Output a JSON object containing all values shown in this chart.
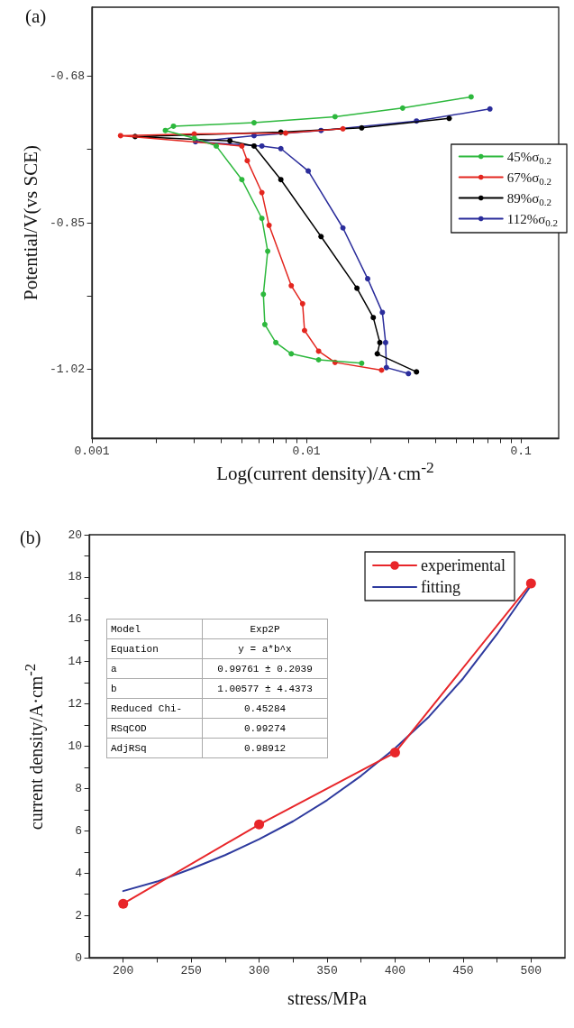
{
  "chart_data": [
    {
      "type": "line",
      "xlabel": "Log(current density)/A·cm$^{-2}$",
      "ylabel": "Potential/V(vs SCE)",
      "log": "x",
      "xlim": [
        0.001,
        0.15
      ],
      "xticks": [
        0.001,
        {
          "value": 0.002,
          "label": null
        },
        {
          "value": 0.003,
          "label": null
        },
        {
          "value": 0.004,
          "label": null
        },
        {
          "value": 0.005,
          "label": null
        },
        {
          "value": 0.006,
          "label": null
        },
        {
          "value": 0.007,
          "label": null
        },
        {
          "value": 0.008,
          "label": null
        },
        {
          "value": 0.009,
          "label": null
        },
        0.01,
        {
          "value": 0.02,
          "label": null
        },
        {
          "value": 0.03,
          "label": null
        },
        {
          "value": 0.04,
          "label": null
        },
        {
          "value": 0.05,
          "label": null
        },
        {
          "value": 0.06,
          "label": null
        },
        {
          "value": 0.07,
          "label": null
        },
        {
          "value": 0.08,
          "label": null
        },
        {
          "value": 0.09,
          "label": null
        },
        0.1
      ],
      "ylim": [
        -1.1,
        -0.6
      ],
      "yticks": [
        -1.02,
        {
          "value": -0.935,
          "label": null
        },
        -0.85,
        {
          "value": -0.765,
          "label": null
        },
        -0.68
      ],
      "grid": false,
      "legend": "right",
      "marker": "circle",
      "line_style": "solid",
      "annotations": [
        "(a)"
      ],
      "series": [
        {
          "name": "45%σ$_{0.2}$",
          "color": "#2db83d",
          "x": [
            0.0181,
            0.0114,
            0.0085,
            0.0072,
            0.0064,
            0.0063,
            0.0066,
            0.0062,
            0.005,
            0.0038,
            0.003,
            0.0022,
            0.0024,
            0.0057,
            0.0136,
            0.0281,
            0.0586
          ],
          "values": [
            -1.013,
            -1.009,
            -1.002,
            -0.989,
            -0.968,
            -0.933,
            -0.883,
            -0.845,
            -0.8,
            -0.761,
            -0.752,
            -0.743,
            -0.738,
            -0.734,
            -0.727,
            -0.717,
            -0.704
          ]
        },
        {
          "name": "67%σ$_{0.2}$",
          "color": "#e3261f",
          "x": [
            0.0224,
            0.0136,
            0.0114,
            0.0098,
            0.0096,
            0.0085,
            0.0067,
            0.0062,
            0.0053,
            0.005,
            0.00136,
            0.003,
            0.008,
            0.0148
          ],
          "values": [
            -1.021,
            -1.012,
            -0.999,
            -0.975,
            -0.944,
            -0.923,
            -0.853,
            -0.815,
            -0.778,
            -0.761,
            -0.749,
            -0.747,
            -0.746,
            -0.741
          ]
        },
        {
          "name": "89%σ$_{0.2}$",
          "color": "#000000",
          "x": [
            0.0326,
            0.0214,
            0.022,
            0.0205,
            0.0172,
            0.0117,
            0.0076,
            0.0057,
            0.0044,
            0.00159,
            0.0076,
            0.0181,
            0.0463
          ],
          "values": [
            -1.023,
            -1.002,
            -0.989,
            -0.96,
            -0.926,
            -0.866,
            -0.8,
            -0.761,
            -0.755,
            -0.75,
            -0.745,
            -0.74,
            -0.729
          ]
        },
        {
          "name": "112%σ$_{0.2}$",
          "color": "#2b2d9b",
          "x": [
            0.0299,
            0.0236,
            0.0234,
            0.0226,
            0.0193,
            0.0148,
            0.0102,
            0.0076,
            0.0062,
            0.00304,
            0.0057,
            0.0117,
            0.0326,
            0.0717
          ],
          "values": [
            -1.025,
            -1.018,
            -0.989,
            -0.954,
            -0.915,
            -0.856,
            -0.79,
            -0.764,
            -0.761,
            -0.756,
            -0.749,
            -0.743,
            -0.732,
            -0.718
          ]
        }
      ]
    },
    {
      "type": "line",
      "xlabel": "stress/MPa",
      "ylabel": "current density/A·cm$^{-2}$",
      "xlim": [
        175,
        525
      ],
      "xticks": [
        200,
        {
          "value": 225,
          "label": null
        },
        250,
        {
          "value": 275,
          "label": null
        },
        300,
        {
          "value": 325,
          "label": null
        },
        350,
        {
          "value": 375,
          "label": null
        },
        400,
        {
          "value": 425,
          "label": null
        },
        450,
        {
          "value": 475,
          "label": null
        },
        500
      ],
      "ylim": [
        0,
        20
      ],
      "yticks": [
        0,
        {
          "value": 1,
          "label": null
        },
        2,
        {
          "value": 3,
          "label": null
        },
        4,
        {
          "value": 5,
          "label": null
        },
        6,
        {
          "value": 7,
          "label": null
        },
        8,
        {
          "value": 9,
          "label": null
        },
        10,
        {
          "value": 11,
          "label": null
        },
        12,
        {
          "value": 13,
          "label": null
        },
        14,
        {
          "value": 15,
          "label": null
        },
        16,
        {
          "value": 17,
          "label": null
        },
        18,
        {
          "value": 19,
          "label": null
        },
        20
      ],
      "grid": false,
      "legend": "top right",
      "line_style": "solid",
      "annotations": [
        "(b)",
        "Model",
        "Exp2P",
        "Equation",
        "y = a*b^x",
        "a",
        "0.99761 ± 0.2039",
        "b",
        "1.00577 ± 4.4373",
        "Reduced Chi-",
        "0.45284",
        "RSqCOD",
        "0.99274",
        "AdjRSq",
        "0.98912"
      ],
      "series": [
        {
          "name": "experimental",
          "color": "#e8262a",
          "marker": "circle",
          "x": [
            200,
            300,
            400,
            500
          ],
          "values": [
            2.55,
            6.3,
            9.7,
            17.7
          ]
        },
        {
          "name": "fitting",
          "color": "#2e3a9e",
          "marker": "none",
          "x": [
            200,
            225,
            250,
            275,
            300,
            325,
            350,
            375,
            400,
            425,
            450,
            475,
            500
          ],
          "values": [
            3.15,
            3.6,
            4.2,
            4.85,
            5.6,
            6.45,
            7.45,
            8.6,
            9.9,
            11.4,
            13.2,
            15.3,
            17.6
          ]
        }
      ]
    }
  ]
}
